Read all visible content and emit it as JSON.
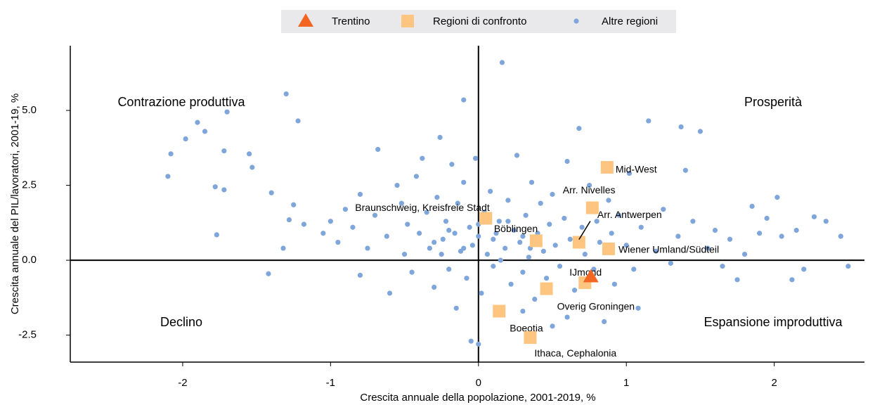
{
  "chart_data": {
    "type": "scatter",
    "x_label": "Crescita annuale della popolazione, 2001-2019, %",
    "y_label": "Crescita annuale del PIL/lavoratori, 2001-19, %",
    "annotations": [
      "Contrazione produttiva",
      "Prosperità",
      "Declino",
      "Espansione improduttiva"
    ],
    "xlim": [
      -2.76,
      2.61
    ],
    "ylim": [
      -3.4,
      7.16
    ],
    "xticks": [
      -2,
      -1,
      0,
      1,
      2
    ],
    "yticks": [
      {
        "value": -2.5,
        "label": "-2.5"
      },
      {
        "value": 0,
        "label": "0.0"
      },
      {
        "value": 2.5,
        "label": "2.5"
      },
      {
        "value": 5,
        "label": "5.0"
      }
    ],
    "series": [
      {
        "name": "Trentino",
        "color": "#f26522",
        "marker": "triangle",
        "x": [
          0.76
        ],
        "values": [
          -0.55
        ]
      },
      {
        "name": "Regioni di confronto",
        "color": "#fdc57f",
        "marker": "square",
        "x": [
          0.87,
          0.77,
          0.05,
          0.39,
          0.68,
          0.88,
          0.72,
          0.46,
          0.14,
          0.35
        ],
        "values": [
          3.1,
          1.75,
          1.4,
          0.65,
          0.6,
          0.38,
          -0.75,
          -0.95,
          -1.7,
          -2.58
        ],
        "point_labels": [
          "Mid-West",
          "Arr. Nivelles",
          "Braunschweig, Kreisfreie Stadt",
          "Böblingen",
          "Arr. Antwerpen",
          "Wiener Umland/Südteil",
          "IJmond",
          "Overig Groningen",
          "Boeotia",
          "Ithaca, Cephalonia"
        ]
      },
      {
        "name": "Altre regioni",
        "color": "#7fa6db",
        "marker": "circle",
        "x": [
          -2.1,
          -2.08,
          -1.98,
          -1.9,
          -1.85,
          -1.7,
          -1.3,
          -1.22,
          -1.78,
          -1.72,
          -1.55,
          -1.53,
          -1.72,
          -1.77,
          -1.4,
          -1.32,
          -1.42,
          -1.28,
          -1.25,
          -1.18,
          -1.05,
          -1.0,
          -0.95,
          -0.9,
          -0.85,
          -0.8,
          -0.75,
          -0.7,
          -0.68,
          -0.62,
          -0.55,
          -0.52,
          -0.5,
          -0.48,
          -0.45,
          -0.42,
          -0.4,
          -0.38,
          -0.35,
          -0.33,
          -0.3,
          -0.28,
          -0.26,
          -0.24,
          -0.22,
          -0.2,
          -0.18,
          -0.16,
          -0.14,
          -0.12,
          -0.1,
          -0.1,
          -0.08,
          -0.06,
          -0.04,
          -0.02,
          0.0,
          0.02,
          0.04,
          0.06,
          0.08,
          0.1,
          0.12,
          0.14,
          0.16,
          0.18,
          0.2,
          0.22,
          0.24,
          0.26,
          0.28,
          0.3,
          0.32,
          0.34,
          0.36,
          0.38,
          0.4,
          0.42,
          0.44,
          0.46,
          0.48,
          0.5,
          0.52,
          0.55,
          0.58,
          0.6,
          0.62,
          0.65,
          0.68,
          0.7,
          0.72,
          0.75,
          0.78,
          0.8,
          0.82,
          0.85,
          0.88,
          0.9,
          0.92,
          0.95,
          1.0,
          1.02,
          1.05,
          1.08,
          1.1,
          1.15,
          1.2,
          1.25,
          1.3,
          1.35,
          1.37,
          1.4,
          1.45,
          1.5,
          1.55,
          1.6,
          1.65,
          1.7,
          1.75,
          1.8,
          1.85,
          1.9,
          1.95,
          2.02,
          2.05,
          2.12,
          2.15,
          2.2,
          2.27,
          2.35,
          2.45,
          2.5,
          0.5,
          0.6,
          -0.05,
          0.0,
          -0.6,
          -0.8,
          -0.15,
          0.3,
          -0.3,
          -0.2,
          -0.1,
          0.0,
          0.1,
          0.2,
          0.3,
          0.15,
          -0.25,
          0.35
        ],
        "values": [
          2.8,
          3.55,
          4.05,
          4.6,
          4.3,
          4.95,
          5.55,
          4.65,
          2.45,
          3.65,
          3.55,
          3.1,
          2.35,
          0.85,
          2.25,
          0.4,
          -0.45,
          1.35,
          1.85,
          1.2,
          0.9,
          1.3,
          0.6,
          1.7,
          1.1,
          2.2,
          0.4,
          1.5,
          3.7,
          0.8,
          2.5,
          1.9,
          0.2,
          1.2,
          -0.4,
          2.8,
          0.9,
          3.4,
          1.6,
          0.4,
          -0.9,
          2.1,
          4.1,
          0.7,
          1.3,
          -0.3,
          3.2,
          0.9,
          1.9,
          0.3,
          5.35,
          2.6,
          -0.6,
          1.1,
          0.5,
          3.4,
          0.8,
          -1.1,
          1.6,
          0.2,
          2.3,
          -0.2,
          0.9,
          1.3,
          6.6,
          0.4,
          2.0,
          -0.8,
          1.0,
          3.5,
          0.6,
          -0.4,
          1.5,
          0.1,
          2.6,
          -1.3,
          0.9,
          1.9,
          0.3,
          -0.6,
          1.2,
          2.2,
          0.5,
          -0.2,
          1.4,
          3.3,
          0.7,
          -1.0,
          4.4,
          1.1,
          0.2,
          2.5,
          -0.3,
          1.3,
          0.6,
          -2.05,
          2.0,
          0.9,
          -0.8,
          1.5,
          0.5,
          2.9,
          -0.3,
          -1.6,
          1.1,
          4.65,
          0.3,
          1.7,
          -0.1,
          0.8,
          4.45,
          3.0,
          1.3,
          4.3,
          0.4,
          1.0,
          -0.2,
          0.7,
          -0.65,
          0.2,
          1.8,
          0.9,
          1.4,
          2.1,
          0.8,
          -0.65,
          1.0,
          -0.3,
          1.45,
          1.3,
          0.8,
          -0.2,
          -2.2,
          -1.9,
          -2.7,
          -2.8,
          -1.1,
          -0.5,
          -1.6,
          -1.7,
          0.6,
          1.0,
          0.4,
          1.2,
          0.7,
          1.3,
          0.8,
          0.0,
          0.2,
          0.4
        ]
      }
    ]
  }
}
